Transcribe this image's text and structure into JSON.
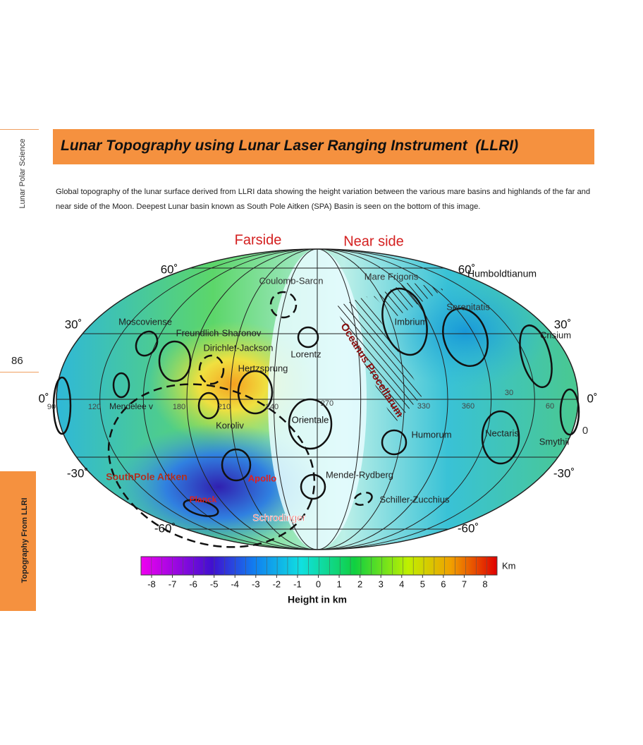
{
  "sidebar": {
    "running_title": "Lunar Polar Science",
    "page_number": "86",
    "section_tab": "Topography From LLRI"
  },
  "header": {
    "title": "Lunar Topography using Lunar Laser Ranging Instrument  (LLRI)"
  },
  "caption": "Global topography of the lunar surface derived from LLRI data showing the height variation between the various mare basins and highlands of the far and near side of the Moon. Deepest Lunar basin known as South Pole Aitken (SPA) Basin is seen on the bottom of this image.",
  "figure": {
    "labels": [
      "Farside",
      "Near side",
      "60˚",
      "60˚",
      "Coulomb-Saron",
      "Mare  Frigoris",
      "Humboldtianum",
      "Serenitatis",
      "30˚",
      "30˚",
      "Moscoviense",
      "Imbrium",
      "Crisium",
      "Freundlich-Sharonov",
      "Dirichlet-Jackson",
      "Lorentz",
      "Oceanus Procellarum",
      "Hertzsprung",
      "0˚",
      "0˚",
      "90",
      "120",
      "180",
      "210",
      "240",
      "270",
      "330",
      "360",
      "30",
      "60",
      "Mendelee v",
      "Koroliv",
      "Orientale",
      "Humorum",
      "Nectaris",
      "Smythii",
      "0",
      "-30˚",
      "-30˚",
      "SouthPole Aitken",
      "Apollo",
      "Mendel-Rydberg",
      "Schiller-Zucchius",
      "Planck",
      "Schrodinger",
      "-60˚",
      "-60˚"
    ],
    "colorbar": {
      "unit": "Km",
      "ticks": [
        -8,
        -7,
        -6,
        -5,
        -4,
        -3,
        -2,
        -1,
        0,
        1,
        2,
        3,
        4,
        5,
        6,
        7,
        8
      ],
      "title": "Height in km"
    }
  }
}
